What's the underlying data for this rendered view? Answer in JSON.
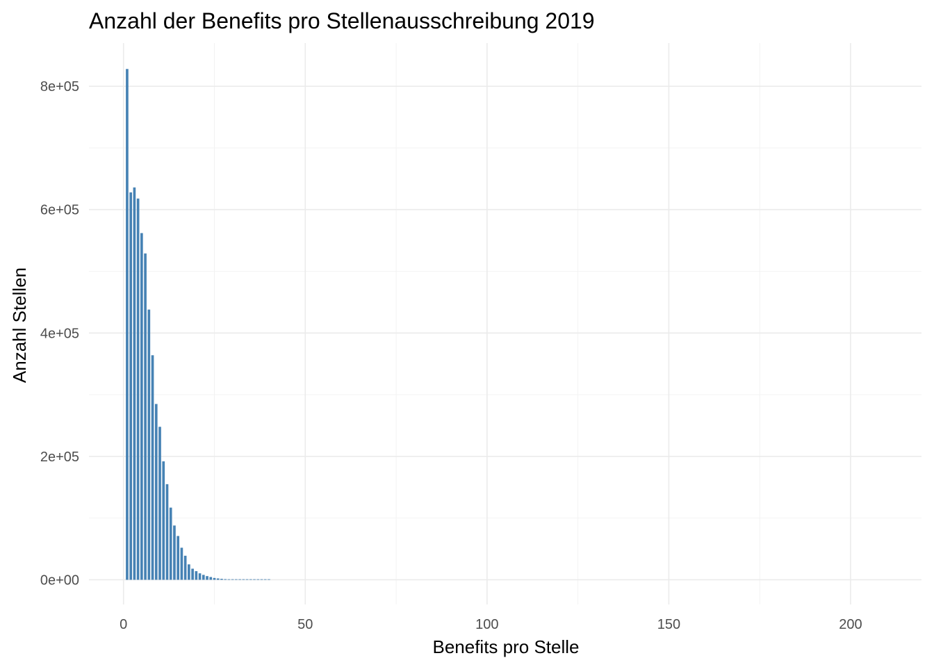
{
  "chart_data": {
    "type": "bar",
    "title": "Anzahl der Benefits pro Stellenausschreibung 2019",
    "xlabel": "Benefits pro Stelle",
    "ylabel": "Anzahl Stellen",
    "xlim": [
      -9.5,
      219.5
    ],
    "ylim": [
      -40000,
      870000
    ],
    "x_ticks": [
      0,
      50,
      100,
      150,
      200
    ],
    "x_tick_labels": [
      "0",
      "50",
      "100",
      "150",
      "200"
    ],
    "y_ticks": [
      0,
      200000,
      400000,
      600000,
      800000
    ],
    "y_tick_labels": [
      "0e+00",
      "2e+05",
      "4e+05",
      "6e+05",
      "8e+05"
    ],
    "grid": true,
    "bar_color": "#4682b4",
    "x": [
      1,
      2,
      3,
      4,
      5,
      6,
      7,
      8,
      9,
      10,
      11,
      12,
      13,
      14,
      15,
      16,
      17,
      18,
      19,
      20,
      21,
      22,
      23,
      24,
      25,
      26,
      27,
      28,
      29,
      30,
      31,
      32,
      33,
      34,
      35,
      36,
      37,
      38,
      39,
      40
    ],
    "values": [
      828000,
      628000,
      636000,
      618000,
      562000,
      529000,
      438000,
      364000,
      285000,
      248000,
      192000,
      155000,
      117000,
      88000,
      71000,
      52000,
      39000,
      25000,
      18000,
      14000,
      10500,
      8000,
      6000,
      4500,
      3000,
      2200,
      1600,
      1100,
      800,
      550,
      380,
      260,
      180,
      120,
      80,
      55,
      35,
      22,
      14,
      8
    ]
  }
}
